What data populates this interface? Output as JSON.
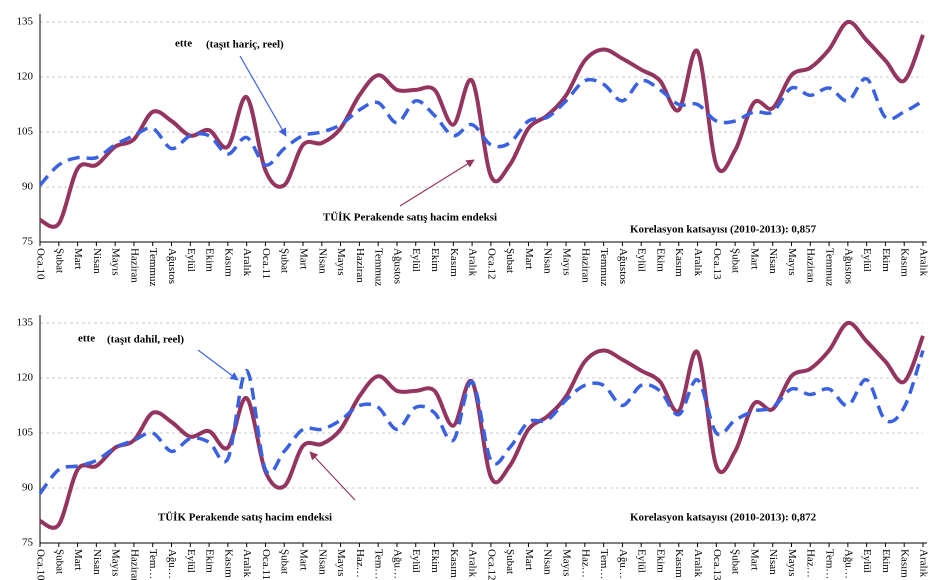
{
  "chart_data": [
    {
      "type": "line",
      "categories": [
        "Oca.10",
        "Şubat",
        "Mart",
        "Nisan",
        "Mayıs",
        "Haziran",
        "Temmuz",
        "Ağustos",
        "Eylül",
        "Ekim",
        "Kasım",
        "Aralık",
        "Oca.11",
        "Şubat",
        "Mart",
        "Nisan",
        "Mayıs",
        "Haziran",
        "Temmuz",
        "Ağustos",
        "Eylül",
        "Ekim",
        "Kasım",
        "Aralık",
        "Oca.12",
        "Şubat",
        "Mart",
        "Nisan",
        "Mayıs",
        "Haziran",
        "Temmuz",
        "Ağustos",
        "Eylül",
        "Ekim",
        "Kasım",
        "Aralık",
        "Oca.13",
        "Şubat",
        "Mart",
        "Nisan",
        "Mayıs",
        "Haziran",
        "Temmuz",
        "Ağustos",
        "Eylül",
        "Ekim",
        "Kasım",
        "Aralık"
      ],
      "series": [
        {
          "name": "TÜİK Perakende satış hacim endeksi",
          "color": "#943560",
          "dashed": false,
          "values": [
            81,
            80,
            95,
            96,
            101,
            103,
            110.5,
            108,
            104,
            105.5,
            101,
            114.5,
            94.5,
            90.5,
            101.5,
            102,
            106,
            115,
            120.5,
            116.5,
            116.5,
            116.5,
            107,
            119,
            93,
            96,
            106,
            109.5,
            115,
            124.5,
            127.5,
            125,
            122,
            119,
            111,
            127,
            96,
            100,
            113,
            111.5,
            120.5,
            122.5,
            127.5,
            135,
            130,
            124.5,
            119,
            131.5
          ]
        },
        {
          "name": "ette",
          "color": "#3a62e0",
          "dashed": true,
          "values": [
            90.5,
            96,
            98,
            98,
            101.5,
            104,
            106,
            100.5,
            104,
            104,
            99,
            103.5,
            96,
            100.5,
            104,
            105,
            107,
            111,
            113,
            107.5,
            113.5,
            109.5,
            104,
            107,
            101.5,
            102,
            108,
            109,
            113.5,
            119,
            118,
            113.5,
            119,
            116.5,
            112.5,
            112.5,
            108,
            108,
            110.5,
            110.5,
            117,
            115,
            117,
            113.5,
            119.5,
            109,
            110.5,
            113.5
          ]
        }
      ],
      "annotations": [
        "(taşıt hariç, reel)",
        "Korelasyon katsayısı (2010-2013): 0,857"
      ],
      "ylim": [
        75,
        135
      ],
      "yticks": [
        75,
        90,
        105,
        120,
        135
      ],
      "grid": true
    },
    {
      "type": "line",
      "categories": [
        "Oca.10",
        "Şubat",
        "Mart",
        "Nisan",
        "Mayıs",
        "Haziran",
        "Tem…",
        "Ağu…",
        "Eylül",
        "Ekim",
        "Kasım",
        "Aralık",
        "Oca.11",
        "Şubat",
        "Mart",
        "Nisan",
        "Mayıs",
        "Haz…",
        "Tem…",
        "Ağu…",
        "Eylül",
        "Ekim",
        "Kasım",
        "Aralık",
        "Oca.12",
        "Şubat",
        "Mart",
        "Nisan",
        "Mayıs",
        "Haz…",
        "Tem…",
        "Ağu…",
        "Eylül",
        "Ekim",
        "Kasım",
        "Aralık",
        "Oca.13",
        "Şubat",
        "Mart",
        "Nisan",
        "Mayıs",
        "Haz…",
        "Tem…",
        "Ağu…",
        "Eylül",
        "Ekim",
        "Kasım",
        "Aralık"
      ],
      "series": [
        {
          "name": "TÜİK Perakende satış hacim endeksi",
          "color": "#943560",
          "dashed": false,
          "values": [
            81,
            80,
            95,
            96,
            101,
            103,
            110.5,
            108,
            104,
            105.5,
            101,
            114.5,
            94.5,
            90.5,
            101.5,
            102,
            106,
            115,
            120.5,
            116.5,
            116.5,
            116.5,
            107,
            119,
            93,
            96,
            106,
            109.5,
            115,
            124.5,
            127.5,
            125,
            122,
            119,
            111,
            127,
            96,
            100,
            113,
            111.5,
            120.5,
            122.5,
            127.5,
            135,
            130,
            124.5,
            119,
            131.5
          ]
        },
        {
          "name": "ette",
          "color": "#3a62e0",
          "dashed": true,
          "values": [
            88.5,
            95,
            96,
            97.5,
            101,
            103,
            105,
            100,
            103.5,
            102.5,
            98,
            122,
            95,
            100,
            106,
            106,
            108.5,
            112.5,
            112,
            106,
            112,
            110.5,
            103,
            119,
            97.5,
            101,
            108,
            108.5,
            114,
            118,
            118,
            112.5,
            118,
            116.5,
            110,
            119.5,
            105,
            108.5,
            111,
            112,
            117,
            115.5,
            117,
            112.5,
            119.5,
            108.5,
            112,
            127.5
          ]
        }
      ],
      "annotations": [
        "(taşıt dahil, reel)",
        "Korelasyon katsayısı (2010-2013): 0,872"
      ],
      "ylim": [
        75,
        135
      ],
      "yticks": [
        75,
        90,
        105,
        120,
        135
      ],
      "grid": true
    }
  ]
}
